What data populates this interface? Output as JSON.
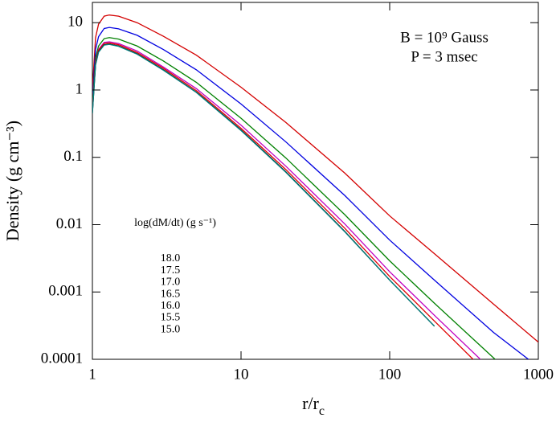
{
  "chart_data": {
    "type": "line",
    "ylabel": "Density (g cm⁻³)",
    "xlabel_main": "r/r",
    "xlabel_sub": "c",
    "annotations": [
      "B = 10⁹ Gauss",
      "P = 3 msec"
    ],
    "legend_title": "log(dM/dt) (g s⁻¹)",
    "xscale": "log",
    "yscale": "log",
    "xlim": [
      1,
      1000
    ],
    "ylim": [
      0.0001,
      20
    ],
    "xticks": [
      1,
      10,
      100,
      1000
    ],
    "yticks": [
      0.0001,
      0.001,
      0.01,
      0.1,
      1,
      10
    ],
    "x": [
      1,
      1.05,
      1.1,
      1.2,
      1.3,
      1.5,
      2,
      3,
      5,
      10,
      20,
      50,
      100,
      200,
      500,
      1000
    ],
    "series": [
      {
        "name": "18.0",
        "color": "#d40000",
        "values": [
          1.0,
          6,
          9.5,
          12.5,
          13,
          12.5,
          10,
          6.3,
          3.3,
          1.1,
          0.33,
          0.058,
          0.0135,
          0.0037,
          0.00066,
          0.00018
        ]
      },
      {
        "name": "17.5",
        "color": "#0000e0",
        "values": [
          0.7,
          4,
          6.2,
          8.2,
          8.5,
          8.1,
          6.5,
          4.0,
          2.0,
          0.62,
          0.17,
          0.027,
          0.0059,
          0.0015,
          0.00025,
          7.7e-05
        ]
      },
      {
        "name": "17.0",
        "color": "#008000",
        "values": [
          0.6,
          3,
          4.5,
          5.8,
          6.0,
          5.7,
          4.5,
          2.7,
          1.3,
          0.38,
          0.098,
          0.014,
          0.0029,
          0.00068,
          0.000105,
          2.6e-05
        ]
      },
      {
        "name": "16.5",
        "color": "#c000c0",
        "values": [
          0.5,
          2.6,
          4,
          5.1,
          5.2,
          4.9,
          3.8,
          2.2,
          1.05,
          0.3,
          0.074,
          0.0102,
          0.002,
          0.00045,
          6.5e-05,
          null
        ]
      },
      {
        "name": "16.0",
        "color": "#e00000",
        "values": [
          0.5,
          2.5,
          3.9,
          4.9,
          5.0,
          4.7,
          3.6,
          2.1,
          0.98,
          0.27,
          0.066,
          0.0088,
          0.0017,
          0.00037,
          5e-05,
          null
        ]
      },
      {
        "name": "15.5",
        "color": "#000000",
        "values": [
          0.45,
          2.4,
          3.7,
          4.7,
          4.8,
          4.5,
          3.45,
          2.0,
          0.93,
          0.255,
          0.061,
          0.0079,
          0.0015,
          0.00031,
          null,
          null
        ]
      },
      {
        "name": "15.0",
        "color": "#008080",
        "values": [
          0.45,
          2.35,
          3.65,
          4.65,
          4.75,
          4.45,
          3.4,
          1.97,
          0.92,
          0.25,
          0.06,
          0.0078,
          0.0015,
          0.00031,
          null,
          null
        ]
      }
    ]
  }
}
